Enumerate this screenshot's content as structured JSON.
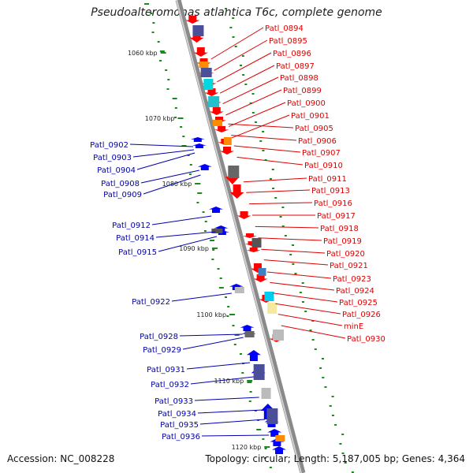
{
  "title": "Pseudoalteromonas atlantica T6c, complete genome",
  "footer": {
    "accession": "Accession: NC_008228",
    "summary": "Topology: circular; Length: 5,187,005 bp; Genes: 4,364"
  },
  "colors": {
    "forward_label": "#dd0000",
    "reverse_label": "#0000aa",
    "forward_gene": "#ff0000",
    "reverse_gene": "#0000ff",
    "backbone": "#8a8a8a",
    "gc_skew": "#1a8a1a"
  },
  "scale_labels": [
    "1060 kbp",
    "1070 kbp",
    "1080 kbp",
    "1090 kbp",
    "1100 kbp",
    "1110 kbp",
    "1120 kbp"
  ],
  "forward_labels": [
    "Patl_0894",
    "Patl_0895",
    "Patl_0896",
    "Patl_0897",
    "Patl_0898",
    "Patl_0899",
    "Patl_0900",
    "Patl_0901",
    "Patl_0905",
    "Patl_0906",
    "Patl_0907",
    "Patl_0910",
    "Patl_0911",
    "Patl_0913",
    "Patl_0916",
    "Patl_0917",
    "Patl_0918",
    "Patl_0919",
    "Patl_0920",
    "Patl_0921",
    "Patl_0923",
    "Patl_0924",
    "Patl_0925",
    "Patl_0926",
    "minE",
    "Patl_0930"
  ],
  "reverse_labels": [
    "Patl_0902",
    "Patl_0903",
    "Patl_0904",
    "Patl_0908",
    "Patl_0909",
    "Patl_0912",
    "Patl_0914",
    "Patl_0915",
    "Patl_0922",
    "Patl_0928",
    "Patl_0929",
    "Patl_0931",
    "Patl_0932",
    "Patl_0933",
    "Patl_0934",
    "Patl_0935",
    "Patl_0936"
  ]
}
